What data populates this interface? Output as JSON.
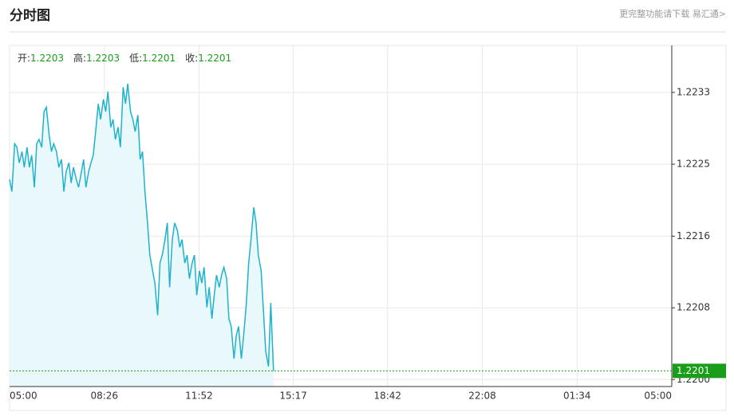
{
  "header": {
    "title": "分时图",
    "link": "更完整功能请下载 易汇通>"
  },
  "chart_data": {
    "type": "line",
    "ohlc": [
      {
        "label": "开:",
        "value": "1.2203"
      },
      {
        "label": "高:",
        "value": "1.2203"
      },
      {
        "label": "低:",
        "value": "1.2201"
      },
      {
        "label": "收:",
        "value": "1.2201"
      }
    ],
    "x": [
      0,
      5,
      11,
      16,
      21,
      27,
      32,
      38,
      43,
      48,
      54,
      59,
      64,
      70,
      75,
      80,
      86,
      91,
      96,
      102,
      107,
      113,
      118,
      123,
      129,
      134,
      139,
      145,
      150,
      155,
      161,
      166,
      172,
      177,
      182,
      188,
      193,
      198,
      204,
      209,
      214,
      220,
      225,
      230,
      236,
      241,
      247,
      252,
      257,
      263,
      268,
      273,
      279,
      284,
      289,
      295,
      300,
      305,
      311,
      316,
      322,
      327,
      332,
      338,
      343,
      348,
      354,
      359,
      365,
      370,
      375,
      381,
      386,
      391,
      397,
      402,
      407,
      413,
      418,
      423,
      429,
      434,
      440,
      445,
      450,
      456,
      461,
      466,
      472,
      477,
      482,
      488,
      493,
      498,
      504,
      509,
      515,
      520,
      525,
      531,
      536,
      541,
      547,
      552,
      557,
      563,
      568,
      574
    ],
    "series": [
      {
        "color": "#1db3cc",
        "fill": "#e9f8fa",
        "values": [
          1.2223,
          1.22216,
          1.22271,
          1.22267,
          1.22249,
          1.22262,
          1.22244,
          1.22267,
          1.22244,
          1.22258,
          1.22221,
          1.22271,
          1.22276,
          1.22267,
          1.22308,
          1.22313,
          1.22281,
          1.22262,
          1.22271,
          1.22262,
          1.22244,
          1.22253,
          1.22216,
          1.22239,
          1.22249,
          1.22226,
          1.22244,
          1.2223,
          1.22221,
          1.22235,
          1.22253,
          1.22221,
          1.22239,
          1.22249,
          1.22258,
          1.2229,
          1.22317,
          1.22299,
          1.22322,
          1.22308,
          1.22331,
          1.2229,
          1.22299,
          1.22276,
          1.2229,
          1.22267,
          1.22336,
          1.22317,
          1.2234,
          1.22308,
          1.22299,
          1.22285,
          1.22304,
          1.22253,
          1.22262,
          1.22212,
          1.2218,
          1.22143,
          1.22125,
          1.22111,
          1.22074,
          1.22134,
          1.22143,
          1.22161,
          1.2218,
          1.22106,
          1.22161,
          1.2218,
          1.22171,
          1.22152,
          1.22161,
          1.22134,
          1.22143,
          1.22116,
          1.22134,
          1.22143,
          1.22097,
          1.22125,
          1.22111,
          1.22129,
          1.22083,
          1.22106,
          1.2207,
          1.22097,
          1.2212,
          1.22106,
          1.2212,
          1.22129,
          1.22116,
          1.2207,
          1.22061,
          1.22024,
          1.22051,
          1.22061,
          1.22024,
          1.22051,
          1.22088,
          1.22134,
          1.22161,
          1.22198,
          1.2218,
          1.22143,
          1.22125,
          1.22079,
          1.22033,
          1.22015,
          1.22088,
          1.2201
        ]
      }
    ],
    "last_price": 1.2201,
    "last_color": "#1a9e1a",
    "xlim": [
      0,
      1440
    ],
    "xticks": [
      {
        "value": 0,
        "label": "05:00"
      },
      {
        "value": 206,
        "label": "08:26"
      },
      {
        "value": 412,
        "label": "11:52"
      },
      {
        "value": 617,
        "label": "15:17"
      },
      {
        "value": 822,
        "label": "18:42"
      },
      {
        "value": 1028,
        "label": "22:08"
      },
      {
        "value": 1234,
        "label": "01:34"
      },
      {
        "value": 1440,
        "label": "05:00"
      }
    ],
    "ylim": [
      1.21992,
      1.22384
    ],
    "yticks": [
      {
        "value": 1.22,
        "label": "1.2200"
      },
      {
        "value": 1.220825,
        "label": "1.2208"
      },
      {
        "value": 1.221648,
        "label": "1.2216"
      },
      {
        "value": 1.222475,
        "label": "1.2225"
      },
      {
        "value": 1.2233,
        "label": "1.2233"
      }
    ],
    "grid": true
  }
}
